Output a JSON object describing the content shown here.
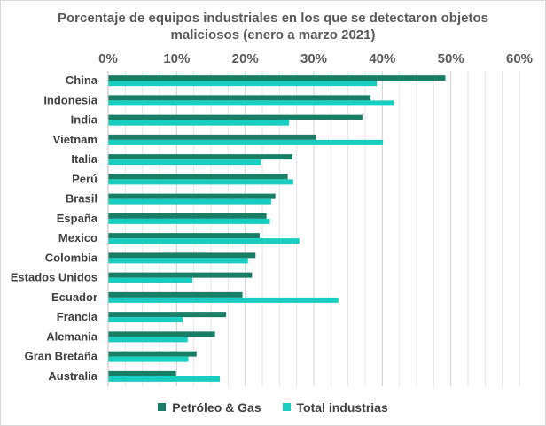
{
  "chart_data": {
    "type": "bar",
    "orientation": "horizontal",
    "title_lines": [
      "Porcentaje de equipos industriales en los que se detectaron objetos",
      "maliciosos (enero a marzo 2021)"
    ],
    "categories": [
      "China",
      "Indonesia",
      "India",
      "Vietnam",
      "Italia",
      "Perú",
      "Brasil",
      "España",
      "Mexico",
      "Colombia",
      "Estados Unidos",
      "Ecuador",
      "Francia",
      "Alemania",
      "Gran Bretaña",
      "Australia"
    ],
    "series": [
      {
        "name": "Petróleo & Gas",
        "color": "#187E65",
        "values": [
          49.2,
          38.3,
          37.1,
          30.3,
          26.9,
          26.2,
          24.4,
          23.1,
          22.1,
          21.5,
          21.0,
          19.6,
          17.2,
          15.6,
          12.9,
          9.9
        ]
      },
      {
        "name": "Total industrias",
        "color": "#19CEC1",
        "values": [
          39.2,
          41.7,
          26.4,
          40.1,
          22.3,
          27.0,
          23.8,
          23.6,
          27.9,
          20.4,
          12.3,
          33.6,
          10.9,
          11.6,
          11.7,
          16.3
        ]
      }
    ],
    "xlim": [
      0,
      60
    ],
    "xticks": [
      0,
      10,
      20,
      30,
      40,
      50,
      60
    ],
    "xtick_labels": [
      "0%",
      "10%",
      "20%",
      "30%",
      "40%",
      "50%",
      "60%"
    ],
    "axis_position": "top",
    "grid": true,
    "legend_position": "bottom"
  }
}
